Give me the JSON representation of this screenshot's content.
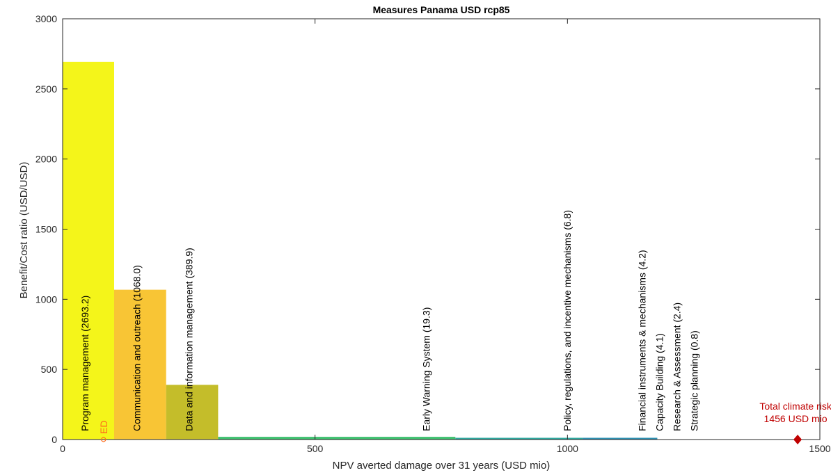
{
  "chart_data": {
    "type": "bar",
    "title": "Measures Panama USD rcp85",
    "xlabel": "NPV averted damage over 31 years (USD mio)",
    "ylabel": "Benefit/Cost ratio (USD/USD)",
    "xlim": [
      0,
      1500
    ],
    "ylim": [
      0,
      3000
    ],
    "xticks": [
      "0",
      "500",
      "1000",
      "1500"
    ],
    "yticks": [
      "0",
      "500",
      "1000",
      "1500",
      "2000",
      "2500",
      "3000"
    ],
    "grid": false,
    "measures": [
      {
        "label": "Program management  (2693.2)",
        "x_start": 0,
        "x_end": 102,
        "bcr": 2693.2,
        "color": "#f4f51a"
      },
      {
        "label": "Communication and outreach  (1068.0)",
        "x_start": 102,
        "x_end": 205,
        "bcr": 1068.0,
        "color": "#f8c535"
      },
      {
        "label": "Data and information management  (389.9)",
        "x_start": 205,
        "x_end": 308,
        "bcr": 389.9,
        "color": "#c4bd2a"
      },
      {
        "label": "Early Warning System  (19.3)",
        "x_start": 308,
        "x_end": 778,
        "bcr": 19.3,
        "color": "#3fbf6f"
      },
      {
        "label": "Policy, regulations, and incentive mechanisms  (6.8)",
        "x_start": 778,
        "x_end": 1030,
        "bcr": 6.8,
        "color": "#2fa79e"
      },
      {
        "label": "Financial instruments & mechanisms  (4.2)",
        "x_start": 1030,
        "x_end": 1178,
        "bcr": 4.2,
        "color": "#2e8fb0"
      },
      {
        "label": "Capacity Building  (4.1)",
        "x_start": 1178,
        "x_end": 1178,
        "bcr": 4.1,
        "color": "#2f6fb5"
      },
      {
        "label": "Research & Assessment  (2.4)",
        "x_start": 1178,
        "x_end": 1178,
        "bcr": 2.4,
        "color": "#3a55b0"
      },
      {
        "label": "Strategic planning  (0.8)",
        "x_start": 1178,
        "x_end": 1178,
        "bcr": 0.8,
        "color": "#3e3aa0"
      }
    ],
    "label_positions_x": [
      102,
      205,
      308,
      778,
      1030,
      1178,
      1178,
      1178,
      1178
    ],
    "ed_marker": {
      "label": "ED",
      "x": 81,
      "y": 0,
      "color": "#ff6a1a"
    },
    "total_risk": {
      "line1": "Total climate risk",
      "line2": "1456 USD mio",
      "x": 1456,
      "y": 0,
      "color": "#c00000"
    }
  }
}
